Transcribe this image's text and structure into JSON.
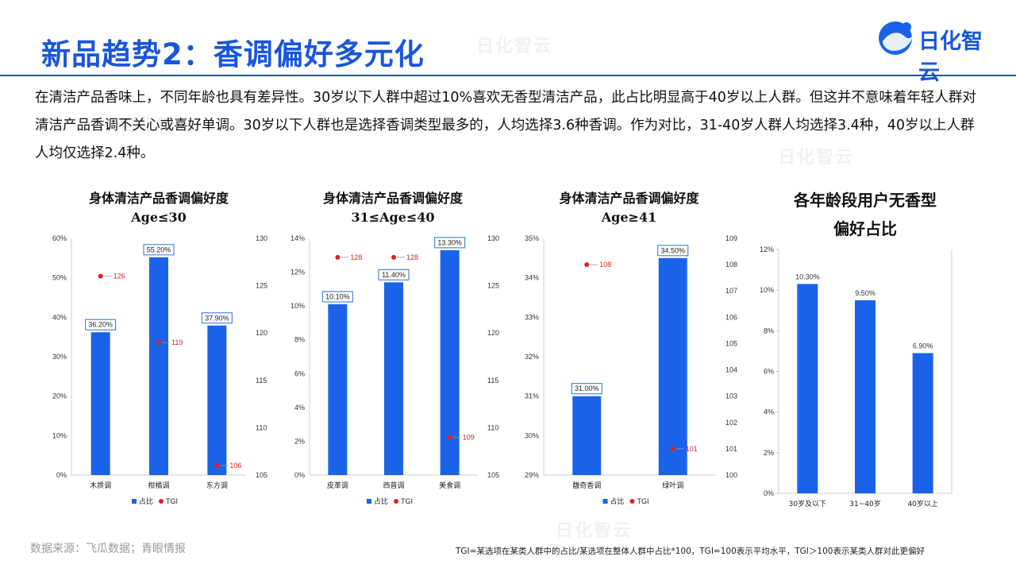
{
  "page": {
    "title": "新品趋势2：香调偏好多元化",
    "logo_text": "日化智云",
    "intro": "在清洁产品香味上，不同年龄也具有差异性。30岁以下人群中超过10%喜欢无香型清洁产品，此占比明显高于40岁以上人群。但这并不意味着年轻人群对清洁产品香调不关心或喜好单调。30岁以下人群也是选择香调类型最多的，人均选择3.6种香调。作为对比，31-40岁人群人均选择3.4种，40岁以上人群人均仅选择2.4种。",
    "source": "数据来源：飞瓜数据；青眼情报",
    "note": "TGI=某选项在某类人群中的占比/某选项在整体人群中占比*100，TGI=100表示平均水平，TGI＞100表示某类人群对此更偏好",
    "watermark": "日化智云"
  },
  "colors": {
    "bar": "#1a63e8",
    "tgi": "#e02020",
    "title": "#1a56db"
  },
  "chart_data": [
    {
      "type": "bar",
      "title": "身体清洁产品香调偏好度",
      "subtitle": "Age≤30",
      "categories": [
        "木质调",
        "柑橘调",
        "东方调"
      ],
      "series": [
        {
          "name": "占比",
          "type": "bar",
          "axis": "left",
          "values": [
            36.2,
            55.2,
            37.9
          ],
          "labels": [
            "36.20%",
            "55.20%",
            "37.90%"
          ]
        },
        {
          "name": "TGI",
          "type": "scatter",
          "axis": "right",
          "values": [
            126,
            119,
            106
          ]
        }
      ],
      "ylim": [
        0,
        60
      ],
      "y_ticks": [
        "0%",
        "10%",
        "20%",
        "30%",
        "40%",
        "50%",
        "60%"
      ],
      "y2lim": [
        105,
        130
      ],
      "y2_ticks": [
        "105",
        "110",
        "115",
        "120",
        "125",
        "130"
      ],
      "legend": "bottom"
    },
    {
      "type": "bar",
      "title": "身体清洁产品香调偏好度",
      "subtitle": "31≤Age≤40",
      "categories": [
        "皮革调",
        "西普调",
        "美食调"
      ],
      "series": [
        {
          "name": "占比",
          "type": "bar",
          "axis": "left",
          "values": [
            10.1,
            11.4,
            13.3
          ],
          "labels": [
            "10.10%",
            "11.40%",
            "13.30%"
          ]
        },
        {
          "name": "TGI",
          "type": "scatter",
          "axis": "right",
          "values": [
            128,
            128,
            109
          ]
        }
      ],
      "ylim": [
        0,
        14
      ],
      "y_ticks": [
        "0%",
        "2%",
        "4%",
        "6%",
        "8%",
        "10%",
        "12%",
        "14%"
      ],
      "y2lim": [
        105,
        130
      ],
      "y2_ticks": [
        "105",
        "110",
        "115",
        "120",
        "125",
        "130"
      ],
      "legend": "bottom"
    },
    {
      "type": "bar",
      "title": "身体清洁产品香调偏好度",
      "subtitle": "Age≥41",
      "categories": [
        "馥奇香调",
        "绿叶调"
      ],
      "series": [
        {
          "name": "占比",
          "type": "bar",
          "axis": "left",
          "values": [
            31.0,
            34.5
          ],
          "labels": [
            "31.00%",
            "34.50%"
          ]
        },
        {
          "name": "TGI",
          "type": "scatter",
          "axis": "right",
          "values": [
            108,
            101
          ]
        }
      ],
      "ylim": [
        29,
        35
      ],
      "y_ticks": [
        "29%",
        "30%",
        "31%",
        "32%",
        "33%",
        "34%",
        "35%"
      ],
      "y2lim": [
        100,
        109
      ],
      "y2_ticks": [
        "100",
        "101",
        "102",
        "103",
        "104",
        "105",
        "106",
        "107",
        "108",
        "109"
      ],
      "legend": "bottom"
    },
    {
      "type": "bar",
      "title": "各年龄段用户无香型",
      "subtitle": "偏好占比",
      "categories": [
        "30岁及以下",
        "31~40岁",
        "40岁以上"
      ],
      "series": [
        {
          "name": "无香型偏好占比",
          "type": "bar",
          "axis": "left",
          "values": [
            10.3,
            9.5,
            6.9
          ],
          "labels": [
            "10.30%",
            "9.50%",
            "6.90%"
          ]
        }
      ],
      "ylim": [
        0,
        12
      ],
      "y_ticks": [
        "0%",
        "2%",
        "4%",
        "6%",
        "8%",
        "10%",
        "12%"
      ],
      "legend": "none"
    }
  ]
}
